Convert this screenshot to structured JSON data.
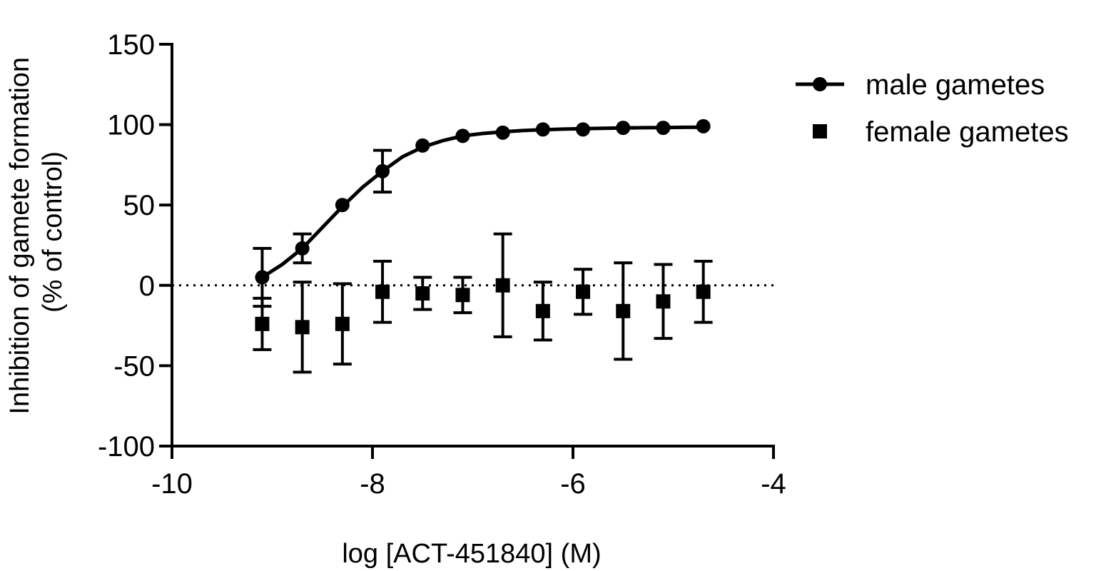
{
  "chart_data": {
    "type": "scatter",
    "title": "",
    "xlabel": "log [ACT-451840] (M)",
    "ylabel": [
      "Inhibition of gamete formation",
      "(% of control)"
    ],
    "xlim": [
      -10,
      -4
    ],
    "ylim": [
      -100,
      150
    ],
    "xticks": [
      -10,
      -8,
      -6,
      -4
    ],
    "yticks": [
      -100,
      -50,
      0,
      50,
      100,
      150
    ],
    "xtick_labels": [
      "-10",
      "-8",
      "-6",
      "-4"
    ],
    "ytick_labels": [
      "-100",
      "-50",
      "0",
      "50",
      "100",
      "150"
    ],
    "grid": false,
    "legend_position": "top-right",
    "reference_line": {
      "y": 0,
      "style": "dotted"
    },
    "series": [
      {
        "name": "male gametes",
        "marker": "circle",
        "fit_curve": true,
        "color": "#000000",
        "x": [
          -9.1,
          -8.7,
          -8.3,
          -7.9,
          -7.5,
          -7.1,
          -6.7,
          -6.3,
          -5.9,
          -5.5,
          -5.1,
          -4.7
        ],
        "y": [
          5,
          23,
          50,
          71,
          87,
          93,
          95,
          97,
          97,
          98,
          98,
          99
        ],
        "error": [
          18,
          9,
          0,
          13,
          0,
          0,
          0,
          0,
          0,
          0,
          0,
          0
        ],
        "fit": {
          "x": [
            -9.1,
            -8.9,
            -8.7,
            -8.5,
            -8.3,
            -8.1,
            -7.9,
            -7.7,
            -7.5,
            -7.3,
            -7.1,
            -6.9,
            -6.7,
            -6.5,
            -6.3,
            -6.1,
            -5.9,
            -5.7,
            -5.5,
            -5.3,
            -5.1,
            -4.9,
            -4.7
          ],
          "y": [
            5,
            13,
            23,
            36,
            49,
            61,
            71,
            80,
            86,
            90,
            93,
            94.5,
            95.5,
            96.3,
            96.8,
            97.2,
            97.5,
            97.7,
            97.9,
            98.1,
            98.2,
            98.3,
            98.4
          ]
        }
      },
      {
        "name": "female gametes",
        "marker": "square",
        "fit_curve": false,
        "color": "#000000",
        "x": [
          -9.1,
          -8.7,
          -8.3,
          -7.9,
          -7.5,
          -7.1,
          -6.7,
          -6.3,
          -5.9,
          -5.5,
          -5.1,
          -4.7
        ],
        "y": [
          -24,
          -26,
          -24,
          -4,
          -5,
          -6,
          0,
          -16,
          -4,
          -16,
          -10,
          -4
        ],
        "error": [
          16,
          28,
          25,
          19,
          10,
          11,
          32,
          18,
          14,
          30,
          23,
          19
        ]
      }
    ]
  }
}
